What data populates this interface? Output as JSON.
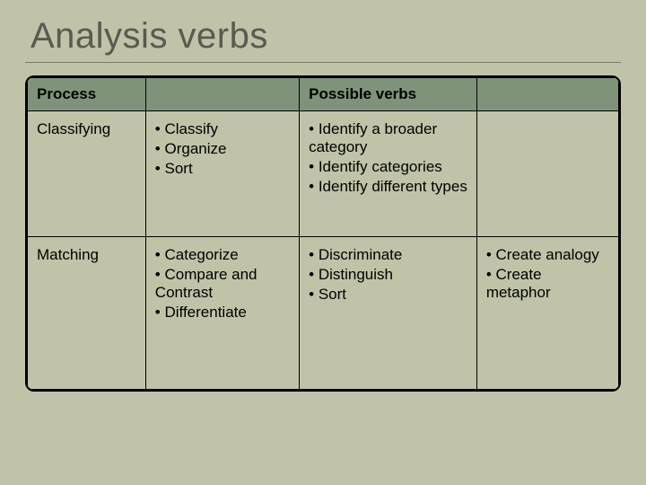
{
  "slide": {
    "title": "Analysis verbs",
    "background_color": "#c0c3a8",
    "title_color": "#5a5a50",
    "title_fontsize": 40,
    "header_bg_color": "#7f937a",
    "border_color": "#000000",
    "cell_fontsize": 17
  },
  "table": {
    "columns": [
      "Process",
      "",
      "Possible verbs",
      ""
    ],
    "column_widths_pct": [
      20,
      26,
      30,
      24
    ],
    "rows": [
      {
        "process": "Classifying",
        "col2": [
          "Classify",
          "Organize",
          "Sort"
        ],
        "col3": [
          "Identify a broader category",
          "Identify categories",
          "Identify different types"
        ],
        "col4": []
      },
      {
        "process": "Matching",
        "col2": [
          "Categorize",
          "Compare and Contrast",
          "Differentiate"
        ],
        "col3": [
          "Discriminate",
          "Distinguish",
          "Sort"
        ],
        "col4": [
          "Create analogy",
          "Create metaphor"
        ]
      }
    ]
  }
}
